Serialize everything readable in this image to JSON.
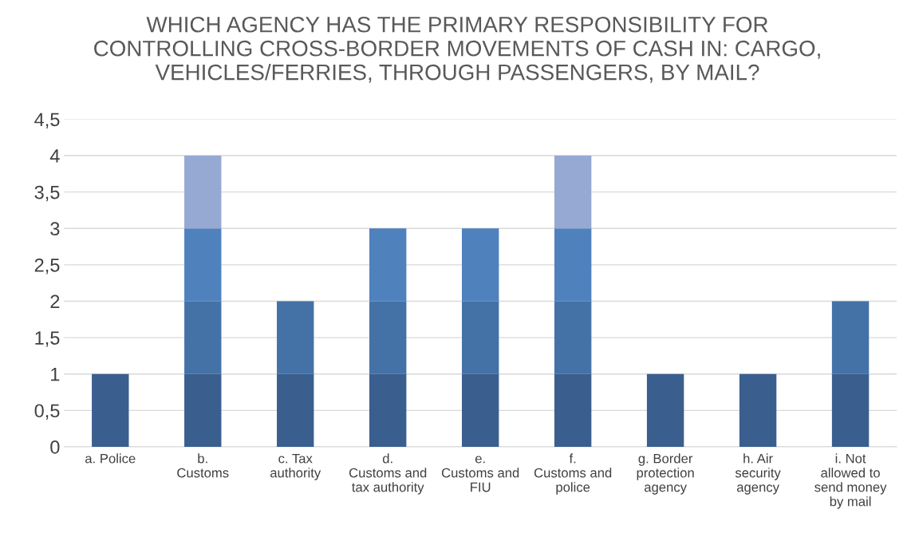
{
  "chart_data": {
    "type": "bar",
    "stacked": true,
    "title": "WHICH AGENCY HAS THE PRIMARY RESPONSIBILITY FOR\nCONTROLLING CROSS-BORDER MOVEMENTS OF CASH IN: CARGO,\nVEHICLES/FERRIES, THROUGH PASSENGERS, BY MAIL?",
    "categories": [
      "a. Police",
      "b.\nCustoms",
      "c. Tax\nauthority",
      "d.\nCustoms and\ntax authority",
      "e.\nCustoms and\nFIU",
      "f.\nCustoms and\npolice",
      "g. Border\nprotection\nagency",
      "h. Air\nsecurity\nagency",
      "i. Not\nallowed to\nsend money\nby mail"
    ],
    "series": [
      {
        "color": "#3a5f8f",
        "values": [
          1,
          1,
          1,
          1,
          1,
          1,
          1,
          1,
          1
        ]
      },
      {
        "color": "#4472a6",
        "values": [
          null,
          1,
          1,
          1,
          1,
          1,
          null,
          null,
          1
        ]
      },
      {
        "color": "#4f81bd",
        "values": [
          null,
          1,
          null,
          1,
          1,
          1,
          null,
          null,
          null
        ]
      },
      {
        "color": "#95a9d2",
        "values": [
          null,
          1,
          null,
          null,
          null,
          1,
          null,
          null,
          null
        ]
      }
    ],
    "ylim": [
      0,
      4.5
    ],
    "yticks": [
      0,
      {
        "value": 0.5,
        "label": "0,5"
      },
      1,
      {
        "value": 1.5,
        "label": "1,5"
      },
      2,
      {
        "value": 2.5,
        "label": "2,5"
      },
      3,
      {
        "value": 3.5,
        "label": "3,5"
      },
      4,
      {
        "value": 4.5,
        "label": "4,5"
      }
    ],
    "grid": "y",
    "legend": false
  }
}
